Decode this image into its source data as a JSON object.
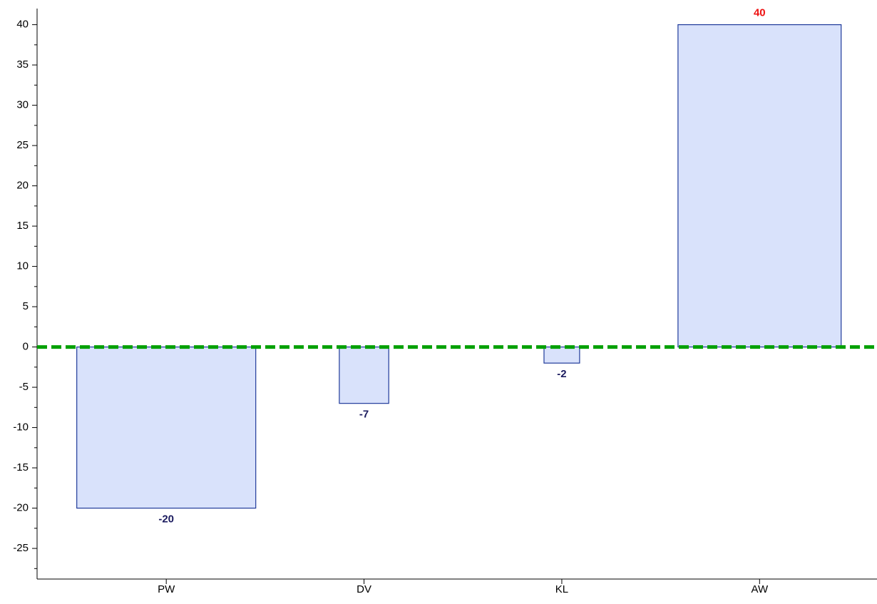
{
  "chart_data": {
    "type": "bar",
    "categories": [
      "PW",
      "DV",
      "KL",
      "AW"
    ],
    "values": [
      -20,
      -7,
      -2,
      40
    ],
    "value_label_colors": [
      "#1a1a5e",
      "#1a1a5e",
      "#1a1a5e",
      "#ee1111"
    ],
    "color": "#d9e2fb",
    "edge_color": "#1f3a9a",
    "ylim": [
      -28.8,
      42
    ],
    "yticks": [
      -25,
      -20,
      -15,
      -10,
      -5,
      0,
      5,
      10,
      15,
      20,
      25,
      30,
      35,
      40
    ],
    "reference_line": {
      "value": 0,
      "color": "#00a000"
    },
    "grid": false
  }
}
